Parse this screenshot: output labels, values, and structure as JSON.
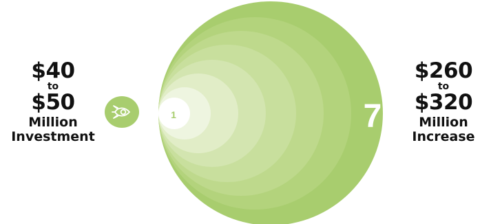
{
  "investment": {
    "from": "$40",
    "connector": "to",
    "to": "$50",
    "unit": "Million",
    "label": "Investment"
  },
  "increase": {
    "from": "$260",
    "connector": "to",
    "to": "$320",
    "unit": "Million",
    "label": "Increase"
  },
  "ripple": {
    "inner_label": "1",
    "outer_label": "7",
    "colors": [
      "#a8cd6e",
      "#b3d37c",
      "#bed98c",
      "#c8df9d",
      "#d3e5b0",
      "#e1edc7",
      "#eef5e0",
      "#ffffff"
    ]
  },
  "icon": "rocket-icon"
}
